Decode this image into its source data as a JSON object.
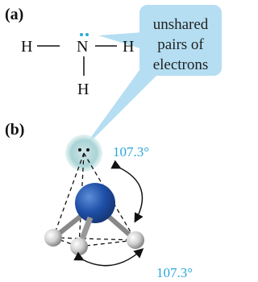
{
  "panel_a": {
    "label": "(a)",
    "atoms": [
      "H",
      "N",
      "H",
      "H"
    ],
    "callout": [
      "unshared",
      "pairs of",
      "electrons"
    ]
  },
  "panel_b": {
    "label": "(b)",
    "angles": [
      "107.3°",
      "107.3°"
    ]
  }
}
